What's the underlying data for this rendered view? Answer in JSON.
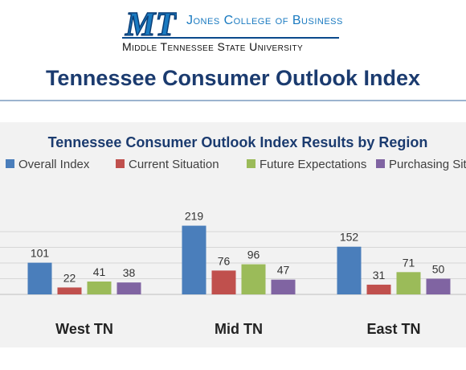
{
  "header": {
    "logo_text": "MT",
    "college_name": "Jones College of Business",
    "university_name": "Middle Tennessee State University",
    "page_title": "Tennessee Consumer Outlook Index"
  },
  "colors": {
    "title": "#1b3b6f",
    "logo_blue": "#1a7ac0",
    "series": [
      "#4a7ebb",
      "#c0504d",
      "#9bbb59",
      "#8064a2"
    ]
  },
  "chart_data": {
    "type": "bar",
    "title": "Tennessee Consumer Outlook Index Results by Region",
    "xlabel": "",
    "ylabel": "",
    "categories": [
      "West TN",
      "Mid TN",
      "East TN"
    ],
    "series": [
      {
        "name": "Overall Index",
        "values": [
          101,
          219,
          152
        ]
      },
      {
        "name": "Current Situation",
        "values": [
          22,
          76,
          31
        ]
      },
      {
        "name": "Future Expectations",
        "values": [
          41,
          96,
          71
        ]
      },
      {
        "name": "Purchasing Situation",
        "values": [
          38,
          47,
          50
        ]
      }
    ],
    "ylim": [
      0,
      250
    ],
    "grid": true,
    "legend": "top"
  }
}
